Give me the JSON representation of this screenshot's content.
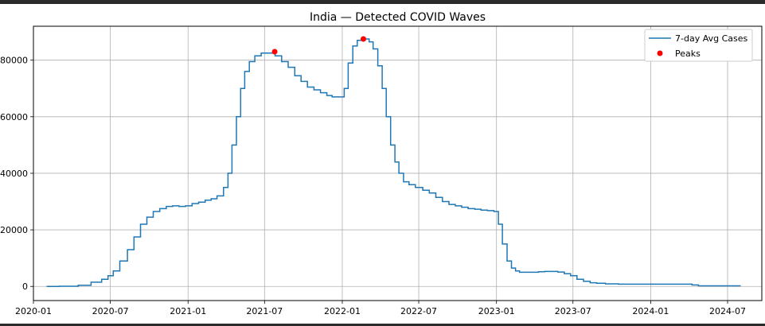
{
  "chart_data": {
    "type": "line",
    "title": "India — Detected COVID Waves",
    "xlabel": "",
    "ylabel": "",
    "xlim": [
      "2020-01-01",
      "2024-09-20"
    ],
    "ylim": [
      -5000,
      92000
    ],
    "grid": true,
    "legend_position": "top-right",
    "x_ticks": [
      "2020-01",
      "2020-07",
      "2021-01",
      "2021-07",
      "2022-01",
      "2022-07",
      "2023-01",
      "2023-07",
      "2024-01",
      "2024-07"
    ],
    "x_tick_labels": [
      "2020-01",
      "2020-07",
      "2021-01",
      "2021-07",
      "2022-01",
      "2022-07",
      "2023-01",
      "2023-07",
      "2024-01",
      "2024-07"
    ],
    "y_ticks": [
      0,
      20000,
      40000,
      60000,
      80000
    ],
    "series": [
      {
        "name": "7-day Avg Cases",
        "type": "line",
        "color": "#1f77b4",
        "x": [
          "2020-02-01",
          "2020-04-01",
          "2020-05-01",
          "2020-06-01",
          "2020-06-20",
          "2020-07-01",
          "2020-07-15",
          "2020-08-01",
          "2020-08-20",
          "2020-09-01",
          "2020-09-20",
          "2020-10-01",
          "2020-10-20",
          "2020-11-01",
          "2020-11-20",
          "2020-12-01",
          "2020-12-20",
          "2021-01-01",
          "2021-01-20",
          "2021-02-01",
          "2021-02-20",
          "2021-03-01",
          "2021-03-20",
          "2021-04-01",
          "2021-04-10",
          "2021-04-20",
          "2021-05-01",
          "2021-05-10",
          "2021-05-20",
          "2021-06-01",
          "2021-06-15",
          "2021-07-01",
          "2021-07-20",
          "2021-08-01",
          "2021-08-20",
          "2021-09-01",
          "2021-09-20",
          "2021-10-01",
          "2021-10-20",
          "2021-11-01",
          "2021-11-20",
          "2021-12-01",
          "2021-12-15",
          "2022-01-01",
          "2022-01-10",
          "2022-01-20",
          "2022-02-01",
          "2022-02-10",
          "2022-02-20",
          "2022-03-01",
          "2022-03-10",
          "2022-03-20",
          "2022-04-01",
          "2022-04-10",
          "2022-04-20",
          "2022-05-01",
          "2022-05-10",
          "2022-05-20",
          "2022-06-01",
          "2022-06-15",
          "2022-07-01",
          "2022-07-20",
          "2022-08-01",
          "2022-08-20",
          "2022-09-01",
          "2022-09-20",
          "2022-10-01",
          "2022-10-20",
          "2022-11-01",
          "2022-11-20",
          "2022-12-01",
          "2022-12-20",
          "2023-01-01",
          "2023-01-10",
          "2023-01-20",
          "2023-02-01",
          "2023-02-10",
          "2023-02-20",
          "2023-03-01",
          "2023-03-20",
          "2023-04-01",
          "2023-04-20",
          "2023-05-01",
          "2023-05-20",
          "2023-06-01",
          "2023-06-20",
          "2023-07-01",
          "2023-07-20",
          "2023-08-01",
          "2023-08-20",
          "2023-09-01",
          "2023-10-01",
          "2023-11-01",
          "2023-12-01",
          "2024-01-01",
          "2024-02-01",
          "2024-03-01",
          "2024-04-01",
          "2024-04-15",
          "2024-05-01",
          "2024-06-01",
          "2024-07-01",
          "2024-08-01"
        ],
        "y": [
          0,
          50,
          400,
          1500,
          2500,
          3800,
          5500,
          9000,
          13000,
          17500,
          22000,
          24500,
          26500,
          27500,
          28300,
          28500,
          28300,
          28500,
          29300,
          29800,
          30500,
          31000,
          32000,
          35000,
          40000,
          50000,
          60000,
          70000,
          76000,
          79500,
          81500,
          82500,
          82500,
          81500,
          79500,
          77500,
          74500,
          72500,
          70500,
          69500,
          68500,
          67500,
          67000,
          67000,
          70000,
          79000,
          85000,
          87000,
          87500,
          87500,
          86500,
          84000,
          78000,
          70000,
          60000,
          50000,
          44000,
          40000,
          37000,
          36000,
          35000,
          34000,
          33000,
          31500,
          30000,
          29000,
          28500,
          28000,
          27500,
          27300,
          27000,
          26800,
          26500,
          22000,
          15000,
          9000,
          6500,
          5500,
          5000,
          5000,
          5000,
          5200,
          5300,
          5300,
          5100,
          4500,
          3800,
          2500,
          1800,
          1300,
          1100,
          900,
          800,
          800,
          800,
          800,
          800,
          800,
          500,
          200,
          200,
          200,
          200
        ]
      },
      {
        "name": "Peaks",
        "type": "scatter",
        "color": "#ff0000",
        "x": [
          "2021-07-25",
          "2022-02-20"
        ],
        "y": [
          83000,
          87500
        ]
      }
    ]
  }
}
